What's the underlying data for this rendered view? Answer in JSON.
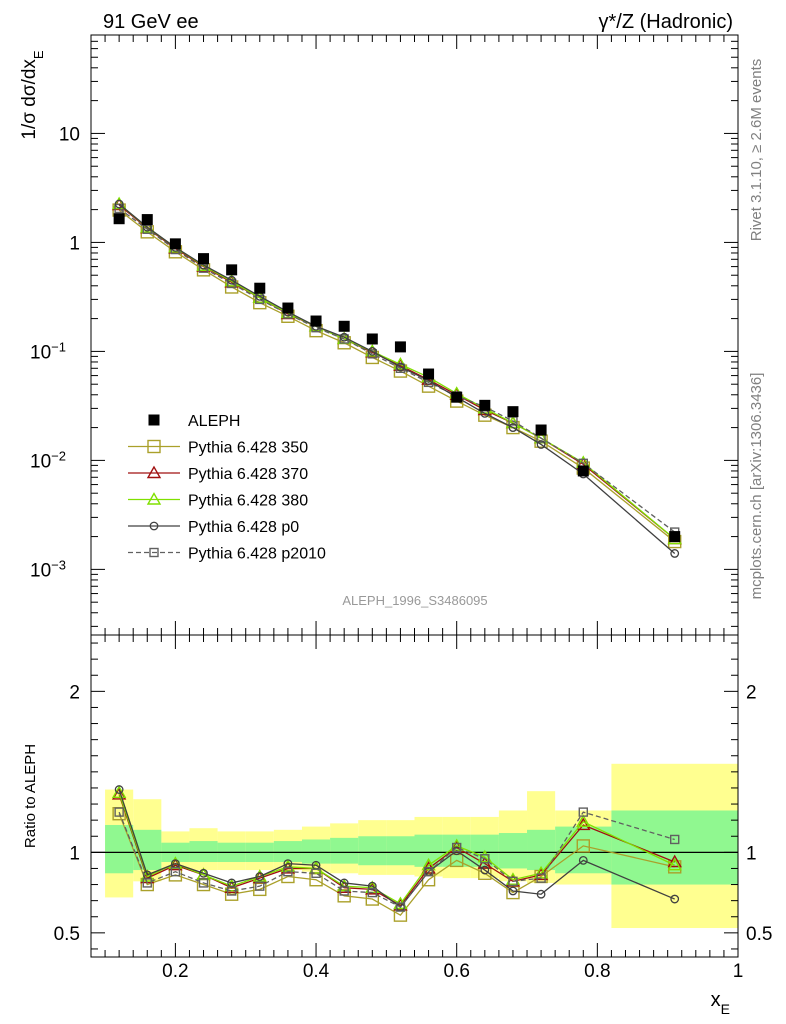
{
  "header": {
    "left_title": "91 GeV ee",
    "right_title": "γ*/Z (Hadronic)"
  },
  "side_labels": {
    "rivet": "Rivet 3.1.10, ≥ 2.6M events",
    "mcplots": "mcplots.cern.ch [arXiv:1306.3436]"
  },
  "watermark": "ALEPH_1996_S3486095",
  "chart_data": [
    {
      "type": "scatter",
      "title": "",
      "ylabel": "1/σ dσ/dx_E",
      "xlabel": "",
      "yscale": "log",
      "xlim": [
        0.08,
        1.0
      ],
      "ylim": [
        0.00025,
        80
      ],
      "yticks": [
        {
          "value": 0.001,
          "base": "10",
          "exp": "−3"
        },
        {
          "value": 0.01,
          "base": "10",
          "exp": "−2"
        },
        {
          "value": 0.1,
          "base": "10",
          "exp": "−1"
        },
        {
          "value": 1,
          "base": "1",
          "exp": ""
        },
        {
          "value": 10,
          "base": "10",
          "exp": ""
        }
      ],
      "legend_position": "bottom-left",
      "x": [
        0.12,
        0.16,
        0.2,
        0.24,
        0.28,
        0.32,
        0.36,
        0.4,
        0.44,
        0.48,
        0.52,
        0.56,
        0.6,
        0.64,
        0.68,
        0.72,
        0.78,
        0.91
      ],
      "series": [
        {
          "name": "ALEPH",
          "color": "#000000",
          "marker": "filled-square",
          "line": "none",
          "values": [
            1.65,
            1.62,
            0.97,
            0.71,
            0.56,
            0.38,
            0.25,
            0.19,
            0.17,
            0.13,
            0.11,
            0.062,
            0.038,
            0.032,
            0.028,
            0.019,
            0.008,
            0.002
          ]
        },
        {
          "name": "Pythia 6.428 350",
          "color": "#aaa02a",
          "marker": "open-square",
          "line": "solid",
          "values": [
            1.98,
            1.25,
            0.82,
            0.56,
            0.39,
            0.28,
            0.21,
            0.155,
            0.12,
            0.088,
            0.066,
            0.048,
            0.035,
            0.026,
            0.02,
            0.015,
            0.0085,
            0.0018
          ]
        },
        {
          "name": "Pythia 6.428 370",
          "color": "#a01010",
          "marker": "open-triangle",
          "line": "solid",
          "values": [
            2.2,
            1.35,
            0.88,
            0.6,
            0.43,
            0.31,
            0.22,
            0.17,
            0.13,
            0.098,
            0.074,
            0.055,
            0.04,
            0.029,
            0.022,
            0.016,
            0.0092,
            0.0019
          ]
        },
        {
          "name": "Pythia 6.428 380",
          "color": "#80e000",
          "marker": "open-triangle",
          "line": "solid",
          "values": [
            2.25,
            1.37,
            0.9,
            0.61,
            0.44,
            0.31,
            0.225,
            0.17,
            0.13,
            0.1,
            0.076,
            0.058,
            0.041,
            0.03,
            0.022,
            0.016,
            0.0095,
            0.0019
          ]
        },
        {
          "name": "Pythia 6.428 p0",
          "color": "#404040",
          "marker": "open-circle",
          "line": "solid",
          "values": [
            2.25,
            1.38,
            0.9,
            0.62,
            0.45,
            0.32,
            0.23,
            0.17,
            0.135,
            0.1,
            0.072,
            0.054,
            0.038,
            0.027,
            0.02,
            0.014,
            0.0075,
            0.0014
          ]
        },
        {
          "name": "Pythia 6.428 p2010",
          "color": "#606060",
          "marker": "open-square",
          "line": "dashed",
          "values": [
            2.05,
            1.32,
            0.86,
            0.58,
            0.42,
            0.3,
            0.22,
            0.165,
            0.13,
            0.095,
            0.07,
            0.052,
            0.039,
            0.031,
            0.023,
            0.016,
            0.0094,
            0.0022
          ]
        }
      ]
    },
    {
      "type": "line",
      "title": "",
      "ylabel": "Ratio to ALEPH",
      "xlabel": "x_E",
      "xlim": [
        0.08,
        1.0
      ],
      "ylim": [
        0.35,
        2.35
      ],
      "xticks": [
        "0.2",
        "0.4",
        "0.6",
        "0.8",
        "1"
      ],
      "yticks": [
        "0.5",
        "1",
        "2"
      ],
      "reference_line": 1,
      "x": [
        0.12,
        0.16,
        0.2,
        0.24,
        0.28,
        0.32,
        0.36,
        0.4,
        0.44,
        0.48,
        0.52,
        0.56,
        0.6,
        0.64,
        0.68,
        0.72,
        0.78,
        0.91
      ],
      "bins": [
        [
          0.1,
          0.14
        ],
        [
          0.14,
          0.18
        ],
        [
          0.18,
          0.22
        ],
        [
          0.22,
          0.26
        ],
        [
          0.26,
          0.3
        ],
        [
          0.3,
          0.34
        ],
        [
          0.34,
          0.38
        ],
        [
          0.38,
          0.42
        ],
        [
          0.42,
          0.46
        ],
        [
          0.46,
          0.5
        ],
        [
          0.5,
          0.54
        ],
        [
          0.54,
          0.58
        ],
        [
          0.58,
          0.62
        ],
        [
          0.62,
          0.66
        ],
        [
          0.66,
          0.7
        ],
        [
          0.7,
          0.74
        ],
        [
          0.74,
          0.82
        ],
        [
          0.82,
          1.0
        ]
      ],
      "band_stat": {
        "color": "#90f890",
        "lo": [
          0.87,
          0.89,
          0.94,
          0.94,
          0.94,
          0.94,
          0.94,
          0.93,
          0.93,
          0.92,
          0.92,
          0.91,
          0.91,
          0.91,
          0.9,
          0.89,
          0.87,
          0.8
        ],
        "hi": [
          1.17,
          1.14,
          1.06,
          1.07,
          1.06,
          1.06,
          1.07,
          1.08,
          1.09,
          1.1,
          1.1,
          1.11,
          1.11,
          1.11,
          1.12,
          1.14,
          1.16,
          1.26
        ]
      },
      "band_total": {
        "color": "#ffff90",
        "lo": [
          0.72,
          0.82,
          0.9,
          0.89,
          0.89,
          0.89,
          0.89,
          0.88,
          0.87,
          0.86,
          0.86,
          0.85,
          0.84,
          0.84,
          0.82,
          0.81,
          0.8,
          0.53
        ]
      },
      "band_total_hi": [
        1.39,
        1.33,
        1.13,
        1.15,
        1.13,
        1.13,
        1.14,
        1.16,
        1.18,
        1.2,
        1.2,
        1.22,
        1.22,
        1.22,
        1.26,
        1.38,
        1.26,
        1.55
      ],
      "series": [
        {
          "name": "Pythia 6.428 350",
          "color": "#aaa02a",
          "marker": "open-square",
          "dashed": false,
          "values": [
            1.24,
            0.8,
            0.86,
            0.8,
            0.74,
            0.77,
            0.85,
            0.83,
            0.73,
            0.71,
            0.61,
            0.83,
            0.95,
            0.87,
            0.75,
            0.85,
            1.04,
            0.91
          ]
        },
        {
          "name": "Pythia 6.428 370",
          "color": "#a01010",
          "marker": "open-triangle",
          "dashed": false,
          "values": [
            1.36,
            0.84,
            0.92,
            0.86,
            0.78,
            0.84,
            0.9,
            0.9,
            0.78,
            0.77,
            0.67,
            0.9,
            1.03,
            0.93,
            0.82,
            0.86,
            1.17,
            0.94
          ]
        },
        {
          "name": "Pythia 6.428 380",
          "color": "#80e000",
          "marker": "open-triangle",
          "dashed": false,
          "values": [
            1.37,
            0.85,
            0.93,
            0.86,
            0.79,
            0.85,
            0.91,
            0.9,
            0.79,
            0.78,
            0.68,
            0.92,
            1.04,
            0.97,
            0.83,
            0.87,
            1.19,
            0.92
          ]
        },
        {
          "name": "Pythia 6.428 p0",
          "color": "#404040",
          "marker": "open-circle",
          "dashed": false,
          "values": [
            1.39,
            0.86,
            0.93,
            0.87,
            0.81,
            0.85,
            0.93,
            0.92,
            0.81,
            0.79,
            0.66,
            0.88,
            1.01,
            0.89,
            0.76,
            0.74,
            0.95,
            0.71
          ]
        },
        {
          "name": "Pythia 6.428 p2010",
          "color": "#606060",
          "marker": "open-square",
          "dashed": true,
          "values": [
            1.25,
            0.81,
            0.88,
            0.81,
            0.76,
            0.79,
            0.88,
            0.87,
            0.76,
            0.75,
            0.66,
            0.88,
            1.03,
            0.96,
            0.82,
            0.84,
            1.25,
            1.08
          ]
        }
      ]
    }
  ]
}
